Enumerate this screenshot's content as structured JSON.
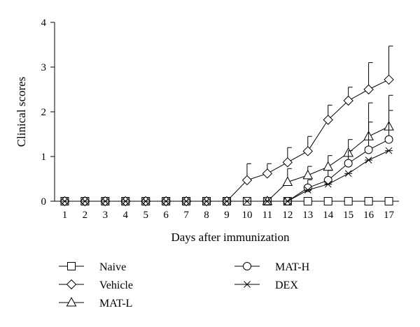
{
  "chart_data": {
    "type": "line",
    "xlabel": "Days after immunization",
    "ylabel": "Clinical scores",
    "x": [
      1,
      2,
      3,
      4,
      5,
      6,
      7,
      8,
      9,
      10,
      11,
      12,
      13,
      14,
      15,
      16,
      17
    ],
    "xlim": [
      0.5,
      17.5
    ],
    "ylim": [
      0,
      4
    ],
    "yticks": [
      0,
      1,
      2,
      3,
      4
    ],
    "grid": false,
    "legend_position": "bottom",
    "series": [
      {
        "name": "Naive",
        "marker": "square",
        "values": [
          0,
          0,
          0,
          0,
          0,
          0,
          0,
          0,
          0,
          0,
          0,
          0,
          0,
          0,
          0,
          0,
          0
        ],
        "error": [
          0,
          0,
          0,
          0,
          0,
          0,
          0,
          0,
          0,
          0,
          0,
          0,
          0,
          0,
          0,
          0,
          0
        ]
      },
      {
        "name": "Vehicle",
        "marker": "diamond",
        "values": [
          0,
          0,
          0,
          0,
          0,
          0,
          0,
          0,
          0,
          0.47,
          0.62,
          0.87,
          1.12,
          1.82,
          2.25,
          2.5,
          2.72
        ],
        "error": [
          0,
          0,
          0,
          0,
          0,
          0,
          0,
          0,
          0,
          0.37,
          0.22,
          0.33,
          0.33,
          0.33,
          0.3,
          0.6,
          0.75
        ]
      },
      {
        "name": "MAT-L",
        "marker": "triangle",
        "values": [
          null,
          null,
          null,
          null,
          null,
          null,
          null,
          null,
          null,
          null,
          0,
          0.43,
          0.58,
          0.77,
          1.08,
          1.45,
          1.67
        ],
        "error": [
          0,
          0,
          0,
          0,
          0,
          0,
          0,
          0,
          0,
          0,
          0,
          0.3,
          0.2,
          0.25,
          0.3,
          0.75,
          0.7
        ]
      },
      {
        "name": "MAT-H",
        "marker": "circle",
        "values": [
          null,
          null,
          null,
          null,
          null,
          null,
          null,
          null,
          null,
          null,
          null,
          0,
          0.3,
          0.47,
          0.85,
          1.15,
          1.38
        ],
        "error": [
          0,
          0,
          0,
          0,
          0,
          0,
          0,
          0,
          0,
          0,
          0,
          0,
          0.18,
          0.22,
          0.28,
          0.62,
          0.65
        ]
      },
      {
        "name": "DEX",
        "marker": "star",
        "values": [
          0,
          0,
          0,
          0,
          0,
          0,
          0,
          0,
          0,
          0,
          0,
          0,
          0.25,
          0.38,
          0.62,
          0.92,
          1.13
        ],
        "error": [
          0,
          0,
          0,
          0,
          0,
          0,
          0,
          0,
          0,
          0,
          0,
          0,
          0,
          0,
          0,
          0,
          0
        ]
      }
    ],
    "legend_order": [
      0,
      1,
      2,
      3,
      4
    ]
  }
}
